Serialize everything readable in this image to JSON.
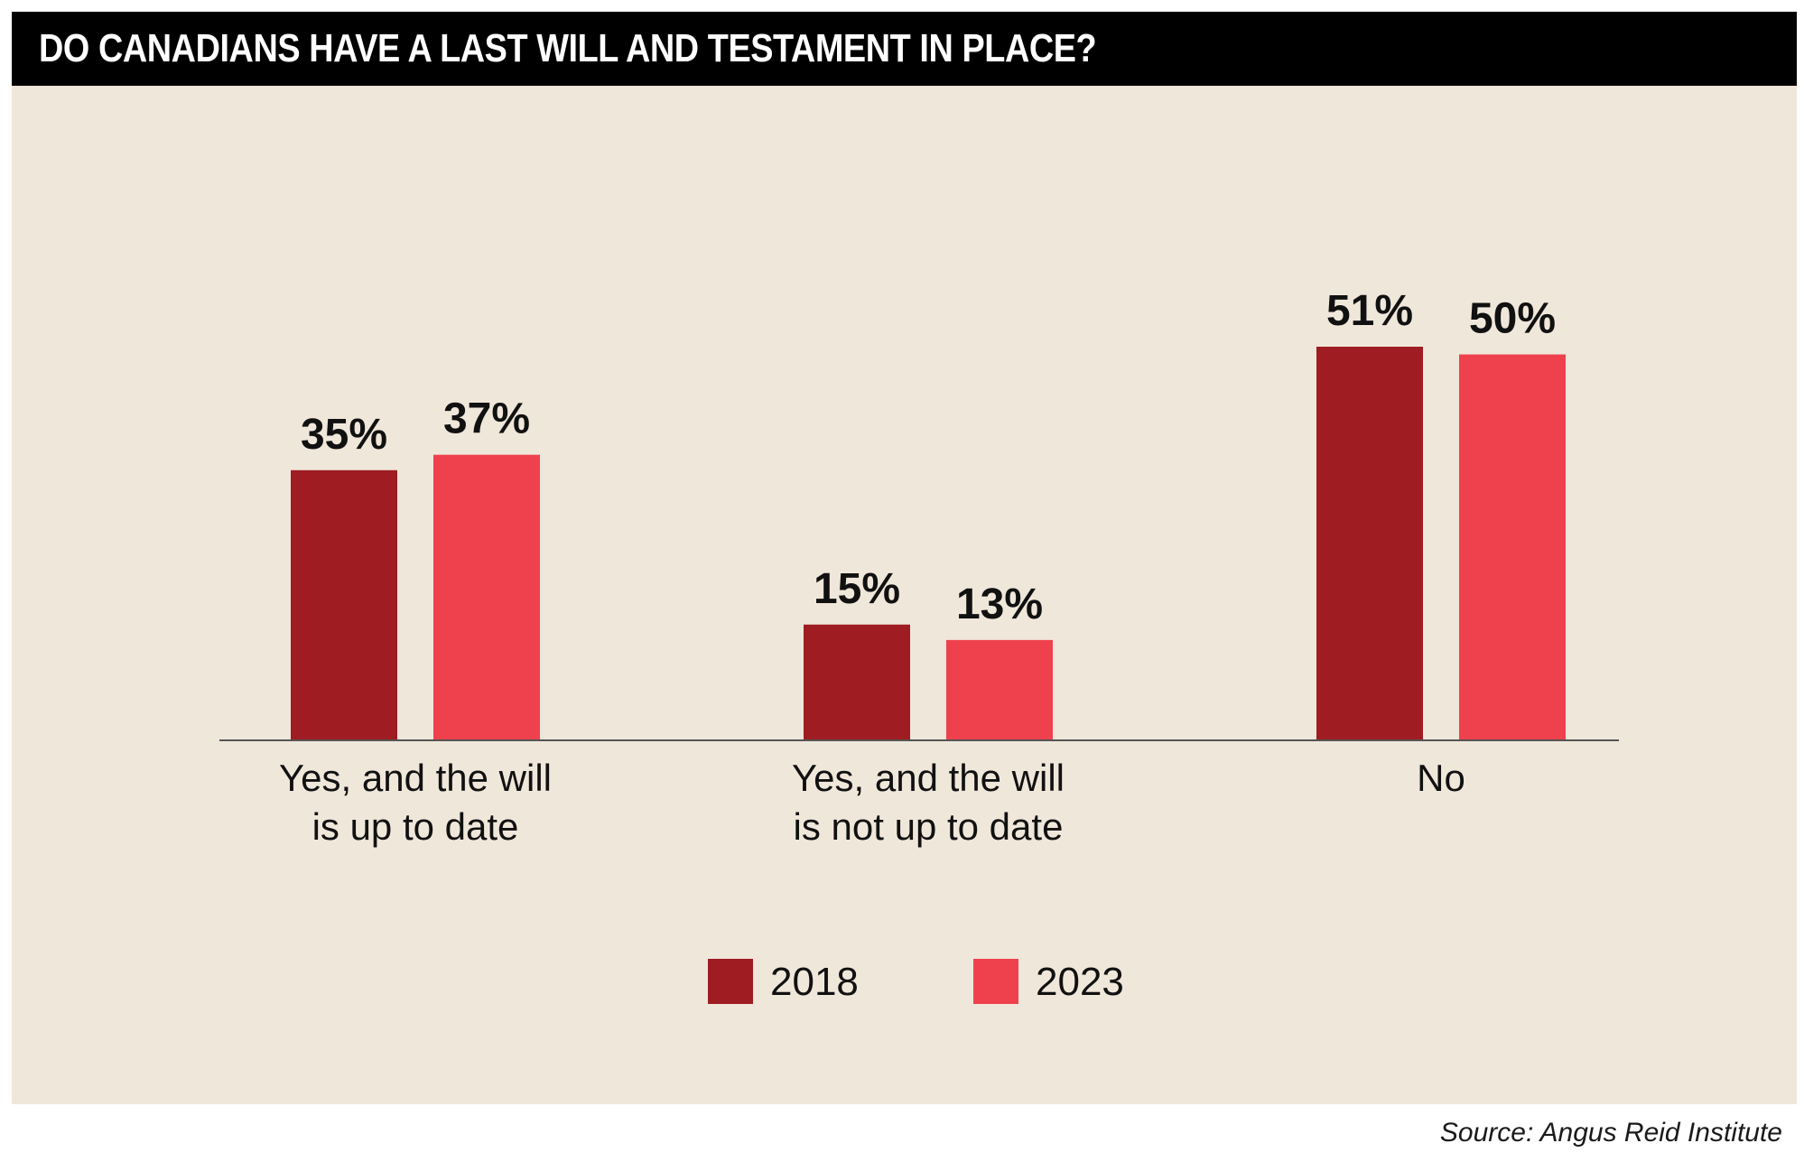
{
  "colors": {
    "background": "#f0e7db",
    "title_bar": "#000000",
    "title_text": "#ffffff",
    "series_2018": "#9e1c22",
    "series_2023": "#ef414d",
    "axis": "#555555",
    "text": "#111111"
  },
  "source": "Source: Angus Reid Institute",
  "chart_data": {
    "type": "bar",
    "title": "DO CANADIANS HAVE A LAST WILL AND TESTAMENT IN PLACE?",
    "categories": [
      [
        "Yes, and the will",
        "is up to date"
      ],
      [
        "Yes, and the will",
        "is not up to date"
      ],
      [
        "No"
      ]
    ],
    "series": [
      {
        "name": "2018",
        "values": [
          35,
          15,
          51
        ],
        "labels": [
          "35%",
          "15%",
          "51%"
        ],
        "color": "#9e1c22"
      },
      {
        "name": "2023",
        "values": [
          37,
          13,
          50
        ],
        "labels": [
          "37%",
          "13%",
          "50%"
        ],
        "color": "#ef414d"
      }
    ],
    "unit": "%",
    "ylim": [
      0,
      51
    ],
    "grid": false,
    "legend": "bottom-center"
  }
}
